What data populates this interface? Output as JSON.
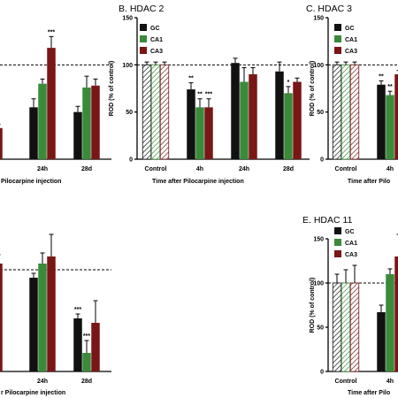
{
  "colors": {
    "GC": "#111111",
    "CA1": "#3a8a3a",
    "CA3": "#7a1616"
  },
  "chart_data": [
    {
      "type": "bar",
      "title": "",
      "xlabel": "Pilocarpine injection",
      "ylabel": "",
      "categories": [
        "h",
        "24h",
        "28d"
      ],
      "series": [
        {
          "name": "GC",
          "values": [
            null,
            55,
            50
          ],
          "errors": [
            null,
            9,
            6
          ],
          "sig": [
            null,
            "",
            ""
          ]
        },
        {
          "name": "CA1",
          "values": [
            null,
            80,
            76
          ],
          "errors": [
            null,
            5,
            12
          ],
          "sig": [
            null,
            "",
            ""
          ]
        },
        {
          "name": "CA3",
          "values": [
            33,
            118,
            78
          ],
          "errors": [
            4,
            12,
            7
          ],
          "sig": [
            "",
            "***",
            ""
          ]
        }
      ],
      "ylim": [
        0,
        150
      ],
      "ref_line": 100
    },
    {
      "type": "bar",
      "title": "B. HDAC 2",
      "xlabel": "Time after Pilocarpine injection",
      "ylabel": "ROD (% of control)",
      "categories": [
        "Control",
        "4h",
        "24h",
        "28d"
      ],
      "yticks": [
        "0",
        "50",
        "100",
        "150"
      ],
      "series": [
        {
          "name": "GC",
          "values": [
            100,
            74,
            102,
            93
          ],
          "errors": [
            3,
            7,
            5,
            10
          ],
          "sig": [
            "",
            "**",
            "",
            ""
          ]
        },
        {
          "name": "CA1",
          "values": [
            100,
            55,
            82,
            70
          ],
          "errors": [
            3,
            9,
            15,
            7
          ],
          "sig": [
            "",
            "**",
            "",
            "*"
          ]
        },
        {
          "name": "CA3",
          "values": [
            100,
            55,
            90,
            82
          ],
          "errors": [
            3,
            9,
            7,
            4
          ],
          "sig": [
            "",
            "***",
            "",
            ""
          ]
        }
      ],
      "ylim": [
        0,
        150
      ],
      "ref_line": 100,
      "legend": "top-left"
    },
    {
      "type": "bar",
      "title": "C. HDAC 3",
      "xlabel": "Time after Pilo",
      "ylabel": "ROD (% of control)",
      "categories": [
        "Control",
        "4h"
      ],
      "yticks": [
        "0",
        "50",
        "100",
        "150"
      ],
      "series": [
        {
          "name": "GC",
          "values": [
            100,
            79
          ],
          "errors": [
            3,
            4
          ],
          "sig": [
            "",
            "**"
          ]
        },
        {
          "name": "CA1",
          "values": [
            100,
            68
          ],
          "errors": [
            3,
            4
          ],
          "sig": [
            "",
            "**"
          ]
        },
        {
          "name": "CA3",
          "values": [
            100,
            90
          ],
          "errors": [
            3,
            4
          ],
          "sig": [
            "",
            ""
          ]
        }
      ],
      "ylim": [
        0,
        150
      ],
      "ref_line": 100,
      "legend": "top-left"
    },
    {
      "type": "bar",
      "title": "",
      "xlabel": "r Pilocarpine injection",
      "ylabel": "",
      "categories": [
        "h",
        "24h",
        "28d"
      ],
      "series": [
        {
          "name": "GC",
          "values": [
            null,
            106,
            60
          ],
          "errors": [
            null,
            5,
            5
          ],
          "sig": [
            null,
            "",
            "***"
          ]
        },
        {
          "name": "CA1",
          "values": [
            75,
            122,
            21
          ],
          "errors": [
            12,
            12,
            14
          ],
          "sig": [
            "",
            "",
            "***"
          ]
        },
        {
          "name": "CA3",
          "values": [
            122,
            130,
            55
          ],
          "errors": [
            10,
            25,
            25
          ],
          "sig": [
            "",
            "",
            ""
          ]
        }
      ],
      "ylim": [
        0,
        150
      ],
      "ref_line": 115
    },
    {
      "type": "bar",
      "title": "E. HDAC 11",
      "xlabel": "Time after Pilo",
      "ylabel": "ROD (% of control)",
      "categories": [
        "Control",
        "4h"
      ],
      "yticks": [
        "0",
        "50",
        "100",
        "150"
      ],
      "series": [
        {
          "name": "GC",
          "values": [
            100,
            67
          ],
          "errors": [
            10,
            8
          ],
          "sig": [
            "",
            ""
          ]
        },
        {
          "name": "CA1",
          "values": [
            100,
            110
          ],
          "errors": [
            15,
            6
          ],
          "sig": [
            "",
            ""
          ]
        },
        {
          "name": "CA3",
          "values": [
            100,
            130
          ],
          "errors": [
            20,
            25
          ],
          "sig": [
            "",
            ""
          ]
        }
      ],
      "ylim": [
        0,
        150
      ],
      "ref_line": 100,
      "legend": "top-left"
    }
  ]
}
